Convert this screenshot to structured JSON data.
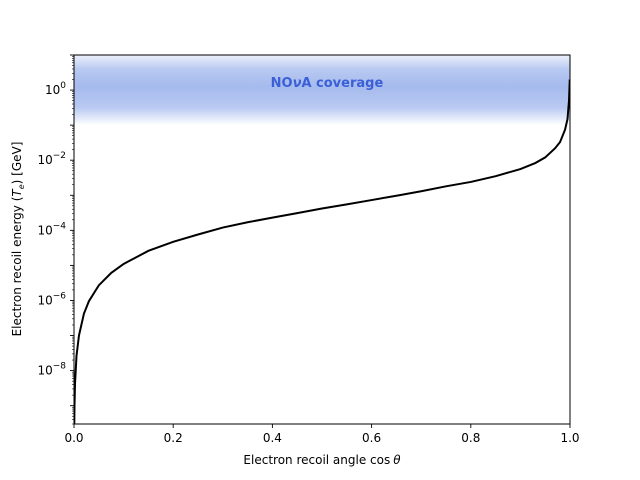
{
  "chart_data": {
    "type": "line",
    "title": "",
    "xlabel_text": "Electron recoil angle cos",
    "xlabel_symbol": "θ",
    "ylabel_text": "Electron recoil energy (",
    "ylabel_symbol": "T",
    "ylabel_subscript": "e",
    "ylabel_unit": ") [GeV]",
    "xlim": [
      0.0,
      1.0
    ],
    "ylim": [
      3e-10,
      10
    ],
    "y_scale": "log",
    "grid": false,
    "x_ticks": [
      {
        "value": 0.0,
        "label": "0.0"
      },
      {
        "value": 0.2,
        "label": "0.2"
      },
      {
        "value": 0.4,
        "label": "0.4"
      },
      {
        "value": 0.6,
        "label": "0.6"
      },
      {
        "value": 0.8,
        "label": "0.8"
      },
      {
        "value": 1.0,
        "label": "1.0"
      }
    ],
    "y_ticks": [
      {
        "value": 1,
        "base": "10",
        "exp": "0"
      },
      {
        "value": 0.01,
        "base": "10",
        "exp": "−2"
      },
      {
        "value": 0.0001,
        "base": "10",
        "exp": "−4"
      },
      {
        "value": 1e-06,
        "base": "10",
        "exp": "−6"
      },
      {
        "value": 1e-08,
        "base": "10",
        "exp": "−8"
      }
    ],
    "series": [
      {
        "color": "#000000",
        "points": [
          [
            0.0,
            3e-10
          ],
          [
            0.0005,
            2.6e-10
          ],
          [
            0.001,
            1e-09
          ],
          [
            0.002,
            4.1e-09
          ],
          [
            0.005,
            2.6e-08
          ],
          [
            0.01,
            1e-07
          ],
          [
            0.02,
            4.2e-07
          ],
          [
            0.03,
            9.5e-07
          ],
          [
            0.05,
            2.7e-06
          ],
          [
            0.075,
            6.1e-06
          ],
          [
            0.1,
            1.1e-05
          ],
          [
            0.15,
            2.6e-05
          ],
          [
            0.2,
            4.7e-05
          ],
          [
            0.25,
            7.6e-05
          ],
          [
            0.3,
            0.00012
          ],
          [
            0.35,
            0.00017
          ],
          [
            0.4,
            0.00023
          ],
          [
            0.45,
            0.00031
          ],
          [
            0.5,
            0.00042
          ],
          [
            0.55,
            0.00055
          ],
          [
            0.6,
            0.00073
          ],
          [
            0.65,
            0.00097
          ],
          [
            0.7,
            0.0013
          ],
          [
            0.75,
            0.0018
          ],
          [
            0.8,
            0.0024
          ],
          [
            0.85,
            0.0035
          ],
          [
            0.9,
            0.0056
          ],
          [
            0.93,
            0.0083
          ],
          [
            0.95,
            0.012
          ],
          [
            0.97,
            0.022
          ],
          [
            0.98,
            0.033
          ],
          [
            0.99,
            0.074
          ],
          [
            0.995,
            0.15
          ],
          [
            0.998,
            0.5
          ],
          [
            0.9995,
            2.0
          ]
        ]
      }
    ],
    "band": {
      "label_pre": "NO",
      "label_nu": "ν",
      "label_post": "A coverage",
      "y_low": 0.1,
      "y_high": 10,
      "color": "#7f9de6",
      "label_color": "#3b5fd6",
      "label_x": 0.51,
      "label_y": 1.7
    }
  }
}
